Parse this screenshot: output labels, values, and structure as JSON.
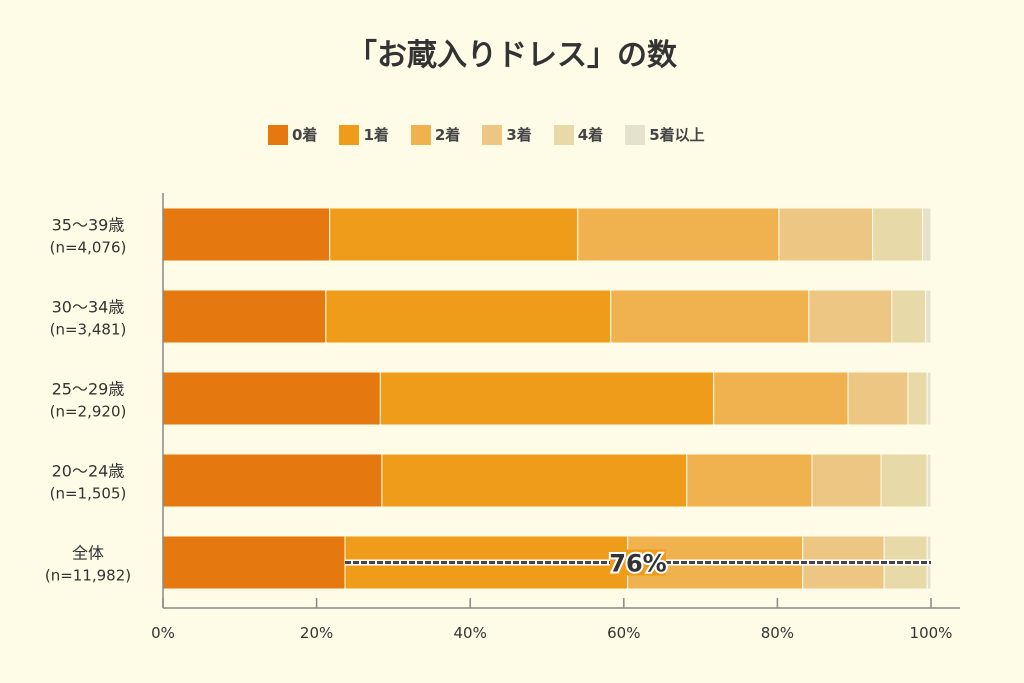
{
  "chart_data": {
    "type": "bar",
    "orientation": "horizontal-stacked",
    "title": "「お蔵入りドレス」の数",
    "categories": [
      {
        "label": "35〜39歳",
        "n": "(n=4,076)"
      },
      {
        "label": "30〜34歳",
        "n": "(n=3,481)"
      },
      {
        "label": "25〜29歳",
        "n": "(n=2,920)"
      },
      {
        "label": "20〜24歳",
        "n": "(n=1,505)"
      },
      {
        "label": "全体",
        "n": "(n=11,982)"
      }
    ],
    "series": [
      {
        "name": "0着",
        "color": "#E5780E",
        "values": [
          21.7,
          21.2,
          28.3,
          28.5,
          23.7
        ]
      },
      {
        "name": "1着",
        "color": "#EF9C1A",
        "values": [
          32.3,
          37.1,
          43.4,
          39.7,
          36.8
        ]
      },
      {
        "name": "2着",
        "color": "#F0B24E",
        "values": [
          26.2,
          25.8,
          17.5,
          16.3,
          22.8
        ]
      },
      {
        "name": "3着",
        "color": "#EEC684",
        "values": [
          12.2,
          10.8,
          7.8,
          9.0,
          10.6
        ]
      },
      {
        "name": "4着",
        "color": "#E8D9A8",
        "values": [
          6.5,
          4.4,
          2.5,
          6.0,
          5.6
        ]
      },
      {
        "name": "5着以上",
        "color": "#E6E1CD",
        "values": [
          1.1,
          0.7,
          0.5,
          0.5,
          0.5
        ]
      }
    ],
    "xlim": [
      0,
      100
    ],
    "xticks": [
      "0%",
      "20%",
      "40%",
      "60%",
      "80%",
      "100%"
    ],
    "annotation": {
      "text": "76%",
      "row": 4,
      "from": 23.7,
      "to": 100
    },
    "legend": "top"
  }
}
